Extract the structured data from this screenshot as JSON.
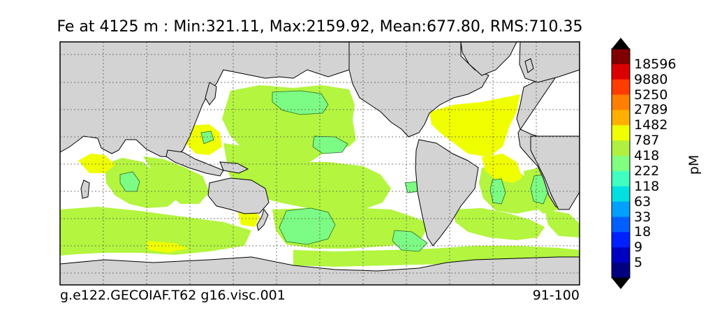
{
  "title": "Fe at 4125 m : Min:321.11, Max:2159.92, Mean:677.80, RMS:710.35",
  "footer_left": "g.e122.GECOIAF.T62 g16.visc.001",
  "footer_right": "91-100",
  "colorbar": {
    "units": "pM",
    "labels": [
      "18596",
      "9880",
      "5250",
      "2789",
      "1482",
      "787",
      "418",
      "222",
      "118",
      "63",
      "33",
      "18",
      "9",
      "5"
    ],
    "colors_top_to_bottom": [
      "#800000",
      "#dd0000",
      "#ff3c00",
      "#ff7f00",
      "#ffb000",
      "#f0ff00",
      "#b0f040",
      "#80ff80",
      "#40ffc0",
      "#00e0e0",
      "#00a0ff",
      "#0060ff",
      "#0020ff",
      "#0000c0",
      "#000080"
    ],
    "over_color": "#000000",
    "under_color": "#000000"
  },
  "map": {
    "land_color": "#d3d3d3",
    "ocean_background": "#ffffff",
    "graticule": "dotted"
  }
}
